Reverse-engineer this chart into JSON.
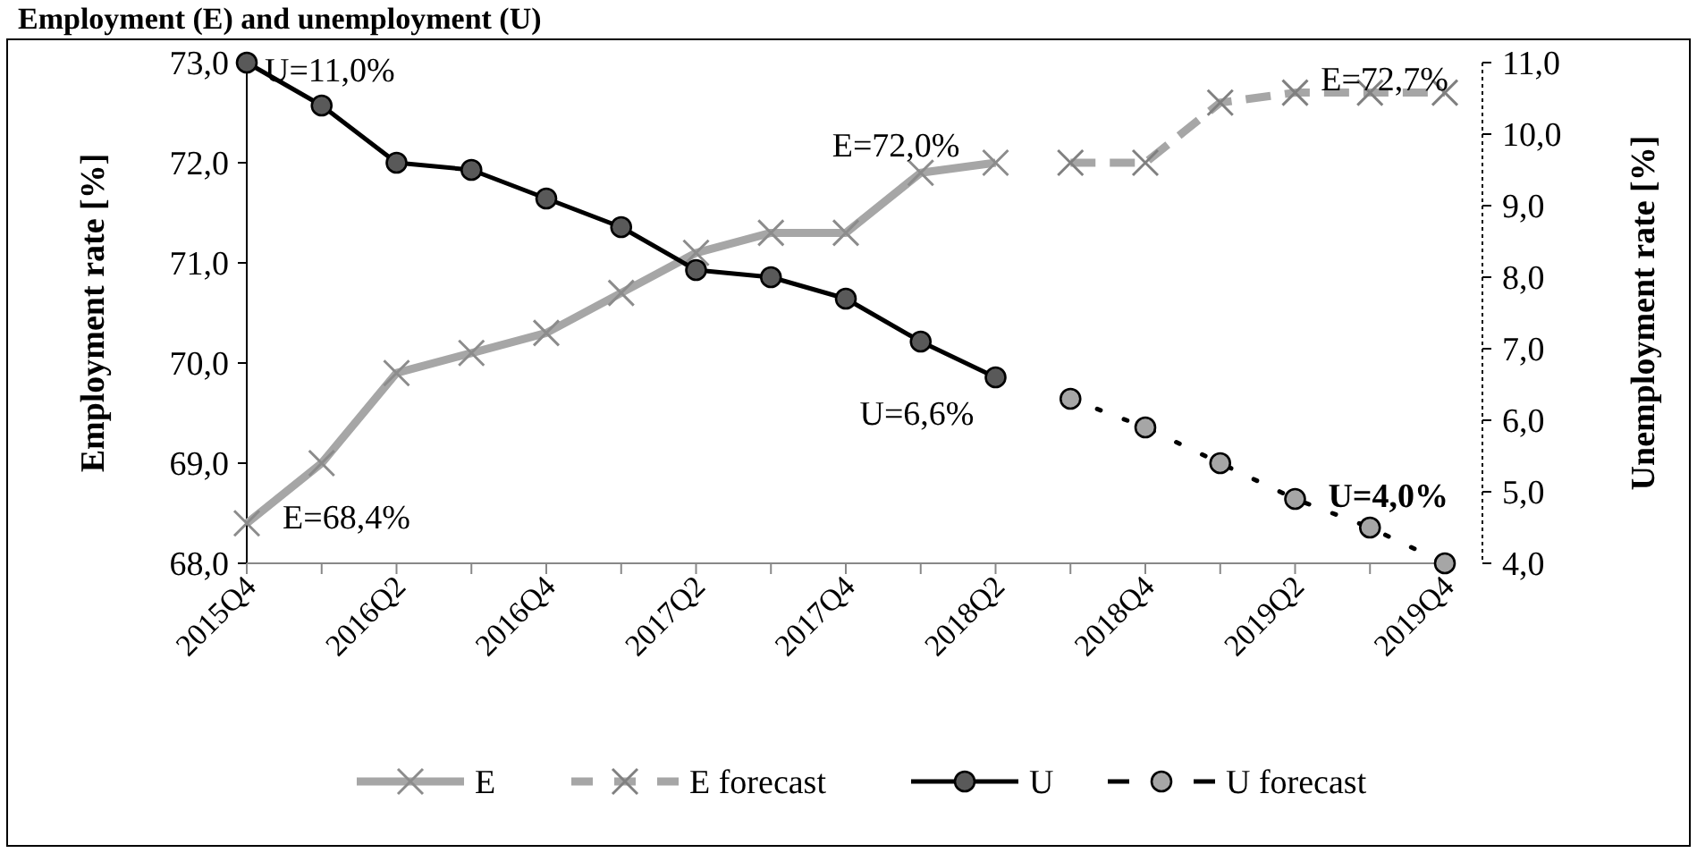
{
  "chart_data": {
    "type": "line",
    "title": "Employment (E) and unemployment (U)",
    "ylabel": "Employment rate [%]",
    "y2label": "Unemployment rate [%]",
    "categories": [
      "2015Q4",
      null,
      "2016Q2",
      null,
      "2016Q4",
      null,
      "2017Q2",
      null,
      "2017Q4",
      null,
      "2018Q2",
      null,
      "2018Q4",
      null,
      "2019Q2",
      null,
      "2019Q4"
    ],
    "series": [
      {
        "name": "E",
        "color": "#a6a6a6",
        "marker": "cross",
        "line_style": "solid",
        "values": [
          68.4,
          69.0,
          69.9,
          70.1,
          70.3,
          70.7,
          71.1,
          71.3,
          71.3,
          71.9,
          72.0,
          null,
          null,
          null,
          null,
          null,
          null
        ]
      },
      {
        "name": "E forecast",
        "color": "#a6a6a6",
        "marker": "cross",
        "line_style": "dashed",
        "values": [
          null,
          null,
          null,
          null,
          null,
          null,
          null,
          null,
          null,
          null,
          null,
          72.0,
          72.0,
          72.6,
          72.7,
          72.7,
          72.7
        ]
      },
      {
        "name": "U",
        "color": "#000000",
        "marker": "circle",
        "line_style": "solid",
        "axis": "y2",
        "values": [
          11.0,
          10.4,
          9.6,
          9.5,
          9.1,
          8.7,
          8.1,
          8.0,
          7.7,
          7.1,
          6.6,
          null,
          null,
          null,
          null,
          null,
          null
        ]
      },
      {
        "name": "U forecast",
        "color": "#000000",
        "marker": "circle",
        "line_style": "dotted",
        "axis": "y2",
        "values": [
          null,
          null,
          null,
          null,
          null,
          null,
          null,
          null,
          null,
          null,
          null,
          6.3,
          5.9,
          5.4,
          4.9,
          4.5,
          4.0
        ]
      }
    ],
    "ylim": [
      68,
      73
    ],
    "yticks": [
      {
        "value": 68,
        "label": "68,0"
      },
      {
        "value": 69,
        "label": "69,0"
      },
      {
        "value": 70,
        "label": "70,0"
      },
      {
        "value": 71,
        "label": "71,0"
      },
      {
        "value": 72,
        "label": "72,0"
      },
      {
        "value": 73,
        "label": "73,0"
      }
    ],
    "y2lim": [
      4,
      11
    ],
    "y2ticks": [
      {
        "value": 4,
        "label": "4,0"
      },
      {
        "value": 5,
        "label": "5,0"
      },
      {
        "value": 6,
        "label": "6,0"
      },
      {
        "value": 7,
        "label": "7,0"
      },
      {
        "value": 8,
        "label": "8,0"
      },
      {
        "value": 9,
        "label": "9,0"
      },
      {
        "value": 10,
        "label": "10,0"
      },
      {
        "value": 11,
        "label": "11,0"
      }
    ],
    "annotations": [
      "U=11,0%",
      {
        "text": "E=68,4%",
        "x": "2015Q4",
        "y": 68.4
      },
      {
        "text": "E=72,0%",
        "x": "2018Q2",
        "y": 72.0
      },
      "U=6,6%",
      {
        "text": "E=72,7%",
        "x": "2019Q4",
        "y": 72.7
      },
      "U=4,0%"
    ],
    "legend": "bottom"
  }
}
